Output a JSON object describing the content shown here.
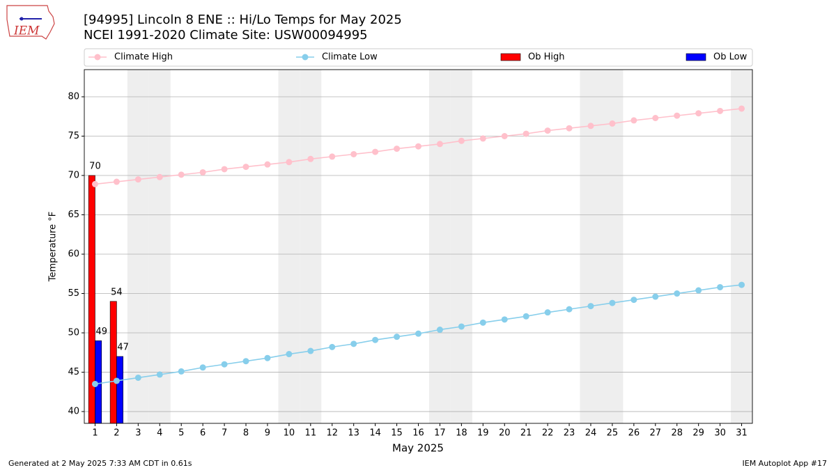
{
  "logo_text": "IEM",
  "footer_left": "Generated at 2 May 2025 7:33 AM CDT in 0.61s",
  "footer_right": "IEM Autoplot App #17",
  "chart_data": {
    "type": "line_bar",
    "title": "[94995] Lincoln 8 ENE :: Hi/Lo Temps for May 2025",
    "subtitle": "NCEI 1991-2020 Climate Site: USW00094995",
    "x_label": "May 2025",
    "y_label": "Temperature °F",
    "x": [
      1,
      2,
      3,
      4,
      5,
      6,
      7,
      8,
      9,
      10,
      11,
      12,
      13,
      14,
      15,
      16,
      17,
      18,
      19,
      20,
      21,
      22,
      23,
      24,
      25,
      26,
      27,
      28,
      29,
      30,
      31
    ],
    "xlim": [
      0.5,
      31.5
    ],
    "xticks": [
      1,
      2,
      3,
      4,
      5,
      6,
      7,
      8,
      9,
      10,
      11,
      12,
      13,
      14,
      15,
      16,
      17,
      18,
      19,
      20,
      21,
      22,
      23,
      24,
      25,
      26,
      27,
      28,
      29,
      30,
      31
    ],
    "ylim": [
      38.5,
      83.45
    ],
    "yticks": [
      40,
      45,
      50,
      55,
      60,
      65,
      70,
      75,
      80
    ],
    "grid": true,
    "shaded_days": [
      3,
      4,
      10,
      11,
      17,
      18,
      24,
      25,
      31
    ],
    "series": [
      {
        "name": "Climate High",
        "kind": "line",
        "color": "#ffc0cb",
        "values": [
          68.9,
          69.2,
          69.5,
          69.8,
          70.1,
          70.4,
          70.8,
          71.1,
          71.4,
          71.7,
          72.1,
          72.4,
          72.7,
          73.0,
          73.4,
          73.7,
          74.0,
          74.4,
          74.7,
          75.0,
          75.3,
          75.7,
          76.0,
          76.3,
          76.6,
          77.0,
          77.3,
          77.6,
          77.9,
          78.2,
          78.5
        ]
      },
      {
        "name": "Climate Low",
        "kind": "line",
        "color": "#87ceeb",
        "values": [
          43.5,
          43.9,
          44.3,
          44.7,
          45.1,
          45.6,
          46.0,
          46.4,
          46.8,
          47.3,
          47.7,
          48.2,
          48.6,
          49.1,
          49.5,
          49.9,
          50.4,
          50.8,
          51.3,
          51.7,
          52.1,
          52.6,
          53.0,
          53.4,
          53.8,
          54.2,
          54.6,
          55.0,
          55.4,
          55.8,
          56.1
        ]
      },
      {
        "name": "Ob High",
        "kind": "bar",
        "color": "#ff0000",
        "values": [
          70,
          54,
          null,
          null,
          null,
          null,
          null,
          null,
          null,
          null,
          null,
          null,
          null,
          null,
          null,
          null,
          null,
          null,
          null,
          null,
          null,
          null,
          null,
          null,
          null,
          null,
          null,
          null,
          null,
          null,
          null
        ]
      },
      {
        "name": "Ob Low",
        "kind": "bar",
        "color": "#0000ff",
        "values": [
          49,
          47,
          null,
          null,
          null,
          null,
          null,
          null,
          null,
          null,
          null,
          null,
          null,
          null,
          null,
          null,
          null,
          null,
          null,
          null,
          null,
          null,
          null,
          null,
          null,
          null,
          null,
          null,
          null,
          null,
          null
        ]
      }
    ]
  }
}
